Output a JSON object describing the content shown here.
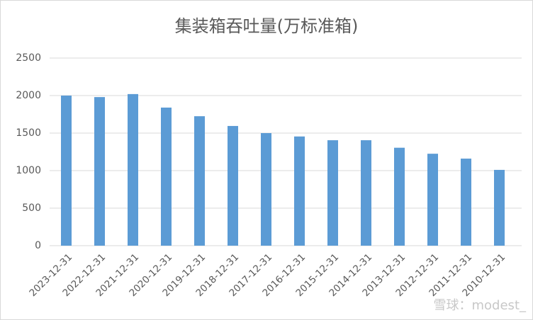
{
  "chart_data": {
    "type": "bar",
    "title": "集装箱吞吐量(万标准箱)",
    "categories": [
      "2023-12-31",
      "2022-12-31",
      "2021-12-31",
      "2020-12-31",
      "2019-12-31",
      "2018-12-31",
      "2017-12-31",
      "2016-12-31",
      "2015-12-31",
      "2014-12-31",
      "2013-12-31",
      "2012-12-31",
      "2011-12-31",
      "2010-12-31"
    ],
    "values": [
      2000,
      1980,
      2020,
      1840,
      1725,
      1595,
      1500,
      1455,
      1405,
      1405,
      1305,
      1225,
      1160,
      1010
    ],
    "color": "#5b9bd5",
    "ylim": [
      0,
      2500
    ],
    "yticks": [
      0,
      500,
      1000,
      1500,
      2000,
      2500
    ],
    "grid": true,
    "watermark": "雪球：modest_"
  }
}
